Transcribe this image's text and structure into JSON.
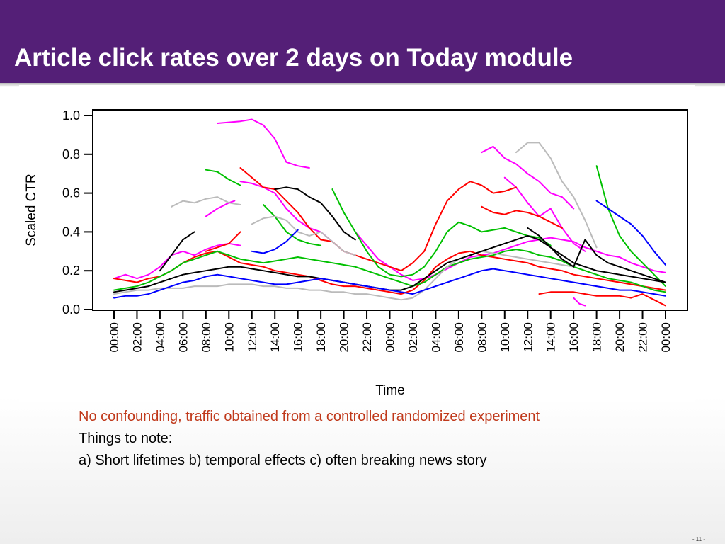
{
  "slide": {
    "title": "Article click rates over 2 days on Today module",
    "notes": [
      "No confounding, traffic obtained from a controlled randomized experiment",
      "Things to note:",
      "a) Short lifetimes b) temporal effects c) often breaking news story"
    ],
    "page_number": "- 11 -"
  },
  "colors": {
    "title_bar": "#541f77",
    "note_highlight": "#c0391b"
  },
  "chart_data": {
    "type": "line",
    "title": "",
    "xlabel": "Time",
    "ylabel": "Scaled CTR",
    "ylim": [
      0,
      1.0
    ],
    "yticks": [
      "0.0",
      "0.2",
      "0.4",
      "0.6",
      "0.8",
      "1.0"
    ],
    "x_tick_labels": [
      "00:00",
      "02:00",
      "04:00",
      "06:00",
      "08:00",
      "10:00",
      "12:00",
      "14:00",
      "16:00",
      "18:00",
      "20:00",
      "22:00",
      "00:00",
      "02:00",
      "04:00",
      "06:00",
      "08:00",
      "10:00",
      "12:00",
      "14:00",
      "16:00",
      "18:00",
      "20:00",
      "22:00",
      "00:00"
    ],
    "x_unit": "hours since first 00:00",
    "x_range": [
      0,
      48
    ],
    "grid": false,
    "series": [
      {
        "color": "#ff00ff",
        "x": [
          9,
          11,
          12,
          13,
          14,
          15,
          16,
          17
        ],
        "y": [
          0.96,
          0.97,
          0.98,
          0.95,
          0.88,
          0.76,
          0.74,
          0.73
        ]
      },
      {
        "color": "#ff00ff",
        "x": [
          32,
          33,
          34,
          35,
          36,
          37,
          38,
          39,
          40
        ],
        "y": [
          0.81,
          0.84,
          0.78,
          0.75,
          0.7,
          0.66,
          0.6,
          0.58,
          0.52
        ]
      },
      {
        "color": "#ff00ff",
        "x": [
          34,
          35,
          36,
          37,
          38,
          39,
          40,
          41
        ],
        "y": [
          0.68,
          0.63,
          0.55,
          0.48,
          0.52,
          0.42,
          0.34,
          0.3
        ]
      },
      {
        "color": "#ff00ff",
        "x": [
          8,
          9,
          10,
          10.5
        ],
        "y": [
          0.48,
          0.52,
          0.55,
          0.56
        ]
      },
      {
        "color": "#ff00ff",
        "x": [
          11,
          12,
          13,
          14,
          15,
          16,
          17,
          18,
          19,
          20,
          21
        ],
        "y": [
          0.66,
          0.65,
          0.63,
          0.6,
          0.52,
          0.46,
          0.42,
          0.4,
          0.35,
          0.3,
          0.28
        ]
      },
      {
        "color": "#ff00ff",
        "x": [
          0,
          1,
          2,
          3,
          4,
          5,
          6,
          7,
          8,
          9,
          10,
          11
        ],
        "y": [
          0.16,
          0.18,
          0.16,
          0.18,
          0.22,
          0.28,
          0.3,
          0.28,
          0.31,
          0.33,
          0.34,
          0.33
        ]
      },
      {
        "color": "#ff00ff",
        "x": [
          21,
          22,
          23,
          24,
          25,
          26,
          27,
          28,
          29,
          30,
          31,
          32,
          33,
          34,
          35,
          36,
          37,
          38,
          39,
          40,
          41,
          42,
          43,
          44,
          45,
          46,
          47,
          48
        ],
        "y": [
          0.4,
          0.33,
          0.26,
          0.22,
          0.18,
          0.15,
          0.16,
          0.18,
          0.21,
          0.24,
          0.27,
          0.28,
          0.29,
          0.31,
          0.33,
          0.35,
          0.36,
          0.37,
          0.36,
          0.35,
          0.32,
          0.3,
          0.28,
          0.27,
          0.24,
          0.22,
          0.2,
          0.19
        ]
      },
      {
        "color": "#ff00ff",
        "x": [
          40,
          40.5,
          41
        ],
        "y": [
          0.06,
          0.03,
          0.02
        ]
      },
      {
        "color": "#ff0000",
        "x": [
          11,
          12,
          13,
          14,
          15,
          16,
          17,
          18,
          19,
          20,
          21,
          22,
          23,
          24,
          25,
          26,
          27,
          28,
          29,
          30,
          31,
          32,
          33,
          34,
          35
        ],
        "y": [
          0.73,
          0.68,
          0.63,
          0.62,
          0.56,
          0.5,
          0.42,
          0.36,
          0.35,
          0.3,
          0.28,
          0.26,
          0.24,
          0.22,
          0.2,
          0.24,
          0.3,
          0.44,
          0.56,
          0.62,
          0.66,
          0.64,
          0.6,
          0.61,
          0.63
        ]
      },
      {
        "color": "#ff0000",
        "x": [
          32,
          33,
          34,
          35,
          36,
          37,
          38,
          39
        ],
        "y": [
          0.53,
          0.5,
          0.49,
          0.51,
          0.5,
          0.48,
          0.45,
          0.42
        ]
      },
      {
        "color": "#ff0000",
        "x": [
          8,
          9,
          10,
          11
        ],
        "y": [
          0.3,
          0.32,
          0.34,
          0.4
        ]
      },
      {
        "color": "#ff0000",
        "x": [
          0,
          1,
          2,
          3,
          4,
          5,
          6,
          7,
          8,
          9,
          10,
          11,
          12,
          13,
          14,
          15,
          16,
          17,
          18,
          19,
          20,
          21,
          22,
          23,
          24,
          25,
          26,
          27,
          28,
          29,
          30,
          31,
          32,
          33,
          34,
          35,
          36,
          37,
          38,
          39,
          40,
          41,
          42,
          43,
          44,
          45,
          46,
          47,
          48
        ],
        "y": [
          0.16,
          0.15,
          0.14,
          0.16,
          0.17,
          0.2,
          0.24,
          0.27,
          0.29,
          0.3,
          0.27,
          0.24,
          0.23,
          0.22,
          0.2,
          0.19,
          0.18,
          0.17,
          0.15,
          0.13,
          0.12,
          0.12,
          0.11,
          0.1,
          0.09,
          0.08,
          0.1,
          0.15,
          0.22,
          0.26,
          0.29,
          0.3,
          0.28,
          0.27,
          0.26,
          0.25,
          0.24,
          0.22,
          0.21,
          0.2,
          0.18,
          0.17,
          0.16,
          0.15,
          0.14,
          0.13,
          0.12,
          0.11,
          0.1
        ]
      },
      {
        "color": "#ff0000",
        "x": [
          37,
          38,
          39,
          40,
          41,
          42,
          43,
          44,
          45,
          46,
          47,
          48
        ],
        "y": [
          0.08,
          0.09,
          0.09,
          0.09,
          0.08,
          0.07,
          0.07,
          0.07,
          0.06,
          0.08,
          0.05,
          0.02
        ]
      },
      {
        "color": "#00c000",
        "x": [
          8,
          9,
          10,
          11
        ],
        "y": [
          0.72,
          0.71,
          0.67,
          0.64
        ]
      },
      {
        "color": "#00c000",
        "x": [
          19,
          20,
          21,
          22,
          23,
          24,
          25,
          26,
          27,
          28,
          29,
          30,
          31,
          32,
          33,
          34,
          35,
          36,
          37,
          38
        ],
        "y": [
          0.62,
          0.5,
          0.4,
          0.3,
          0.22,
          0.18,
          0.17,
          0.18,
          0.22,
          0.3,
          0.4,
          0.45,
          0.43,
          0.4,
          0.41,
          0.42,
          0.4,
          0.38,
          0.37,
          0.33
        ]
      },
      {
        "color": "#00c000",
        "x": [
          42,
          43,
          44,
          45,
          46,
          47,
          48
        ],
        "y": [
          0.74,
          0.52,
          0.38,
          0.3,
          0.24,
          0.18,
          0.12
        ]
      },
      {
        "color": "#00c000",
        "x": [
          13,
          14,
          15,
          16,
          17,
          18
        ],
        "y": [
          0.54,
          0.48,
          0.4,
          0.36,
          0.34,
          0.33
        ]
      },
      {
        "color": "#00c000",
        "x": [
          0,
          1,
          2,
          3,
          4,
          5,
          6,
          7,
          8,
          9,
          10,
          11,
          12,
          13,
          14,
          15,
          16,
          17,
          18,
          19,
          20,
          21,
          22,
          23,
          24,
          25,
          26,
          27,
          28,
          29,
          30,
          31,
          32,
          33,
          34,
          35,
          36,
          37,
          38,
          39,
          40,
          41,
          42,
          43,
          44,
          45,
          46,
          47,
          48
        ],
        "y": [
          0.1,
          0.11,
          0.12,
          0.14,
          0.17,
          0.2,
          0.24,
          0.26,
          0.28,
          0.3,
          0.28,
          0.26,
          0.25,
          0.24,
          0.25,
          0.26,
          0.27,
          0.26,
          0.25,
          0.24,
          0.23,
          0.22,
          0.2,
          0.18,
          0.16,
          0.14,
          0.12,
          0.14,
          0.18,
          0.22,
          0.24,
          0.26,
          0.27,
          0.28,
          0.3,
          0.31,
          0.3,
          0.28,
          0.27,
          0.25,
          0.22,
          0.2,
          0.18,
          0.16,
          0.15,
          0.14,
          0.12,
          0.1,
          0.09
        ]
      },
      {
        "color": "#bbbbbb",
        "x": [
          5,
          6,
          7,
          8,
          9,
          10,
          11
        ],
        "y": [
          0.53,
          0.56,
          0.55,
          0.57,
          0.58,
          0.55,
          0.54
        ]
      },
      {
        "color": "#bbbbbb",
        "x": [
          35,
          36,
          37,
          38,
          39,
          40,
          41,
          42
        ],
        "y": [
          0.81,
          0.86,
          0.86,
          0.78,
          0.66,
          0.58,
          0.46,
          0.32
        ]
      },
      {
        "color": "#bbbbbb",
        "x": [
          12,
          13,
          14,
          15,
          16,
          17,
          18,
          19,
          20,
          21
        ],
        "y": [
          0.44,
          0.47,
          0.48,
          0.46,
          0.4,
          0.38,
          0.4,
          0.35,
          0.3,
          0.28
        ]
      },
      {
        "color": "#bbbbbb",
        "x": [
          0,
          1,
          2,
          3,
          4,
          5,
          6,
          7,
          8,
          9,
          10,
          11,
          12,
          13,
          14,
          15,
          16,
          17,
          18,
          19,
          20,
          21,
          22,
          23,
          24,
          25,
          26,
          27,
          28,
          29,
          30,
          31,
          32,
          33,
          34,
          35,
          36,
          37,
          38,
          39,
          40
        ],
        "y": [
          0.08,
          0.09,
          0.1,
          0.1,
          0.11,
          0.11,
          0.11,
          0.12,
          0.12,
          0.12,
          0.13,
          0.13,
          0.13,
          0.12,
          0.12,
          0.11,
          0.11,
          0.1,
          0.1,
          0.09,
          0.09,
          0.08,
          0.08,
          0.07,
          0.06,
          0.05,
          0.06,
          0.1,
          0.16,
          0.22,
          0.26,
          0.28,
          0.3,
          0.29,
          0.28,
          0.27,
          0.26,
          0.25,
          0.24,
          0.23,
          0.22
        ]
      },
      {
        "color": "#000000",
        "x": [
          14,
          15,
          16,
          17,
          18,
          19,
          20,
          21
        ],
        "y": [
          0.62,
          0.63,
          0.62,
          0.58,
          0.55,
          0.48,
          0.4,
          0.36
        ]
      },
      {
        "color": "#000000",
        "x": [
          4,
          5,
          6,
          7
        ],
        "y": [
          0.2,
          0.28,
          0.36,
          0.4
        ]
      },
      {
        "color": "#000000",
        "x": [
          0,
          1,
          2,
          3,
          4,
          5,
          6,
          7,
          8,
          9,
          10,
          11,
          12,
          13,
          14,
          15,
          16,
          17,
          18,
          19,
          20,
          21,
          22,
          23,
          24,
          25,
          26,
          27,
          28,
          29,
          30,
          31,
          32,
          33,
          34,
          35,
          36,
          37,
          38,
          39,
          40,
          41,
          42,
          43,
          44,
          45,
          46,
          47,
          48
        ],
        "y": [
          0.09,
          0.1,
          0.11,
          0.12,
          0.14,
          0.16,
          0.18,
          0.19,
          0.2,
          0.21,
          0.22,
          0.22,
          0.21,
          0.2,
          0.19,
          0.18,
          0.17,
          0.17,
          0.16,
          0.15,
          0.14,
          0.13,
          0.12,
          0.11,
          0.1,
          0.1,
          0.12,
          0.16,
          0.2,
          0.24,
          0.26,
          0.28,
          0.3,
          0.32,
          0.34,
          0.36,
          0.38,
          0.36,
          0.32,
          0.28,
          0.24,
          0.22,
          0.2,
          0.19,
          0.18,
          0.17,
          0.16,
          0.15,
          0.14
        ]
      },
      {
        "color": "#000000",
        "x": [
          36,
          37,
          38,
          39,
          40,
          41,
          42,
          43,
          44,
          45,
          46,
          47,
          48
        ],
        "y": [
          0.42,
          0.38,
          0.32,
          0.26,
          0.22,
          0.36,
          0.28,
          0.24,
          0.22,
          0.2,
          0.18,
          0.16,
          0.14
        ]
      },
      {
        "color": "#0000ff",
        "x": [
          0,
          1,
          2,
          3,
          4,
          5,
          6,
          7,
          8,
          9,
          10,
          11,
          12,
          13,
          14,
          15,
          16,
          17,
          18,
          19,
          20,
          21,
          22,
          23,
          24,
          25,
          26,
          27,
          28,
          29,
          30,
          31,
          32,
          33,
          34,
          35,
          36,
          37,
          38,
          39,
          40,
          41,
          42,
          43,
          44,
          45,
          46,
          47,
          48
        ],
        "y": [
          0.06,
          0.07,
          0.07,
          0.08,
          0.1,
          0.12,
          0.14,
          0.15,
          0.17,
          0.18,
          0.17,
          0.16,
          0.15,
          0.14,
          0.13,
          0.13,
          0.14,
          0.15,
          0.16,
          0.15,
          0.14,
          0.13,
          0.12,
          0.11,
          0.1,
          0.09,
          0.08,
          0.1,
          0.12,
          0.14,
          0.16,
          0.18,
          0.2,
          0.21,
          0.2,
          0.19,
          0.18,
          0.17,
          0.16,
          0.15,
          0.14,
          0.13,
          0.12,
          0.11,
          0.1,
          0.1,
          0.09,
          0.08,
          0.07
        ]
      },
      {
        "color": "#0000ff",
        "x": [
          42,
          43,
          44,
          45,
          46,
          47,
          48
        ],
        "y": [
          0.56,
          0.52,
          0.48,
          0.44,
          0.38,
          0.3,
          0.23
        ]
      },
      {
        "color": "#0000ff",
        "x": [
          12,
          13,
          14,
          15,
          16
        ],
        "y": [
          0.3,
          0.29,
          0.31,
          0.35,
          0.41
        ]
      }
    ]
  }
}
